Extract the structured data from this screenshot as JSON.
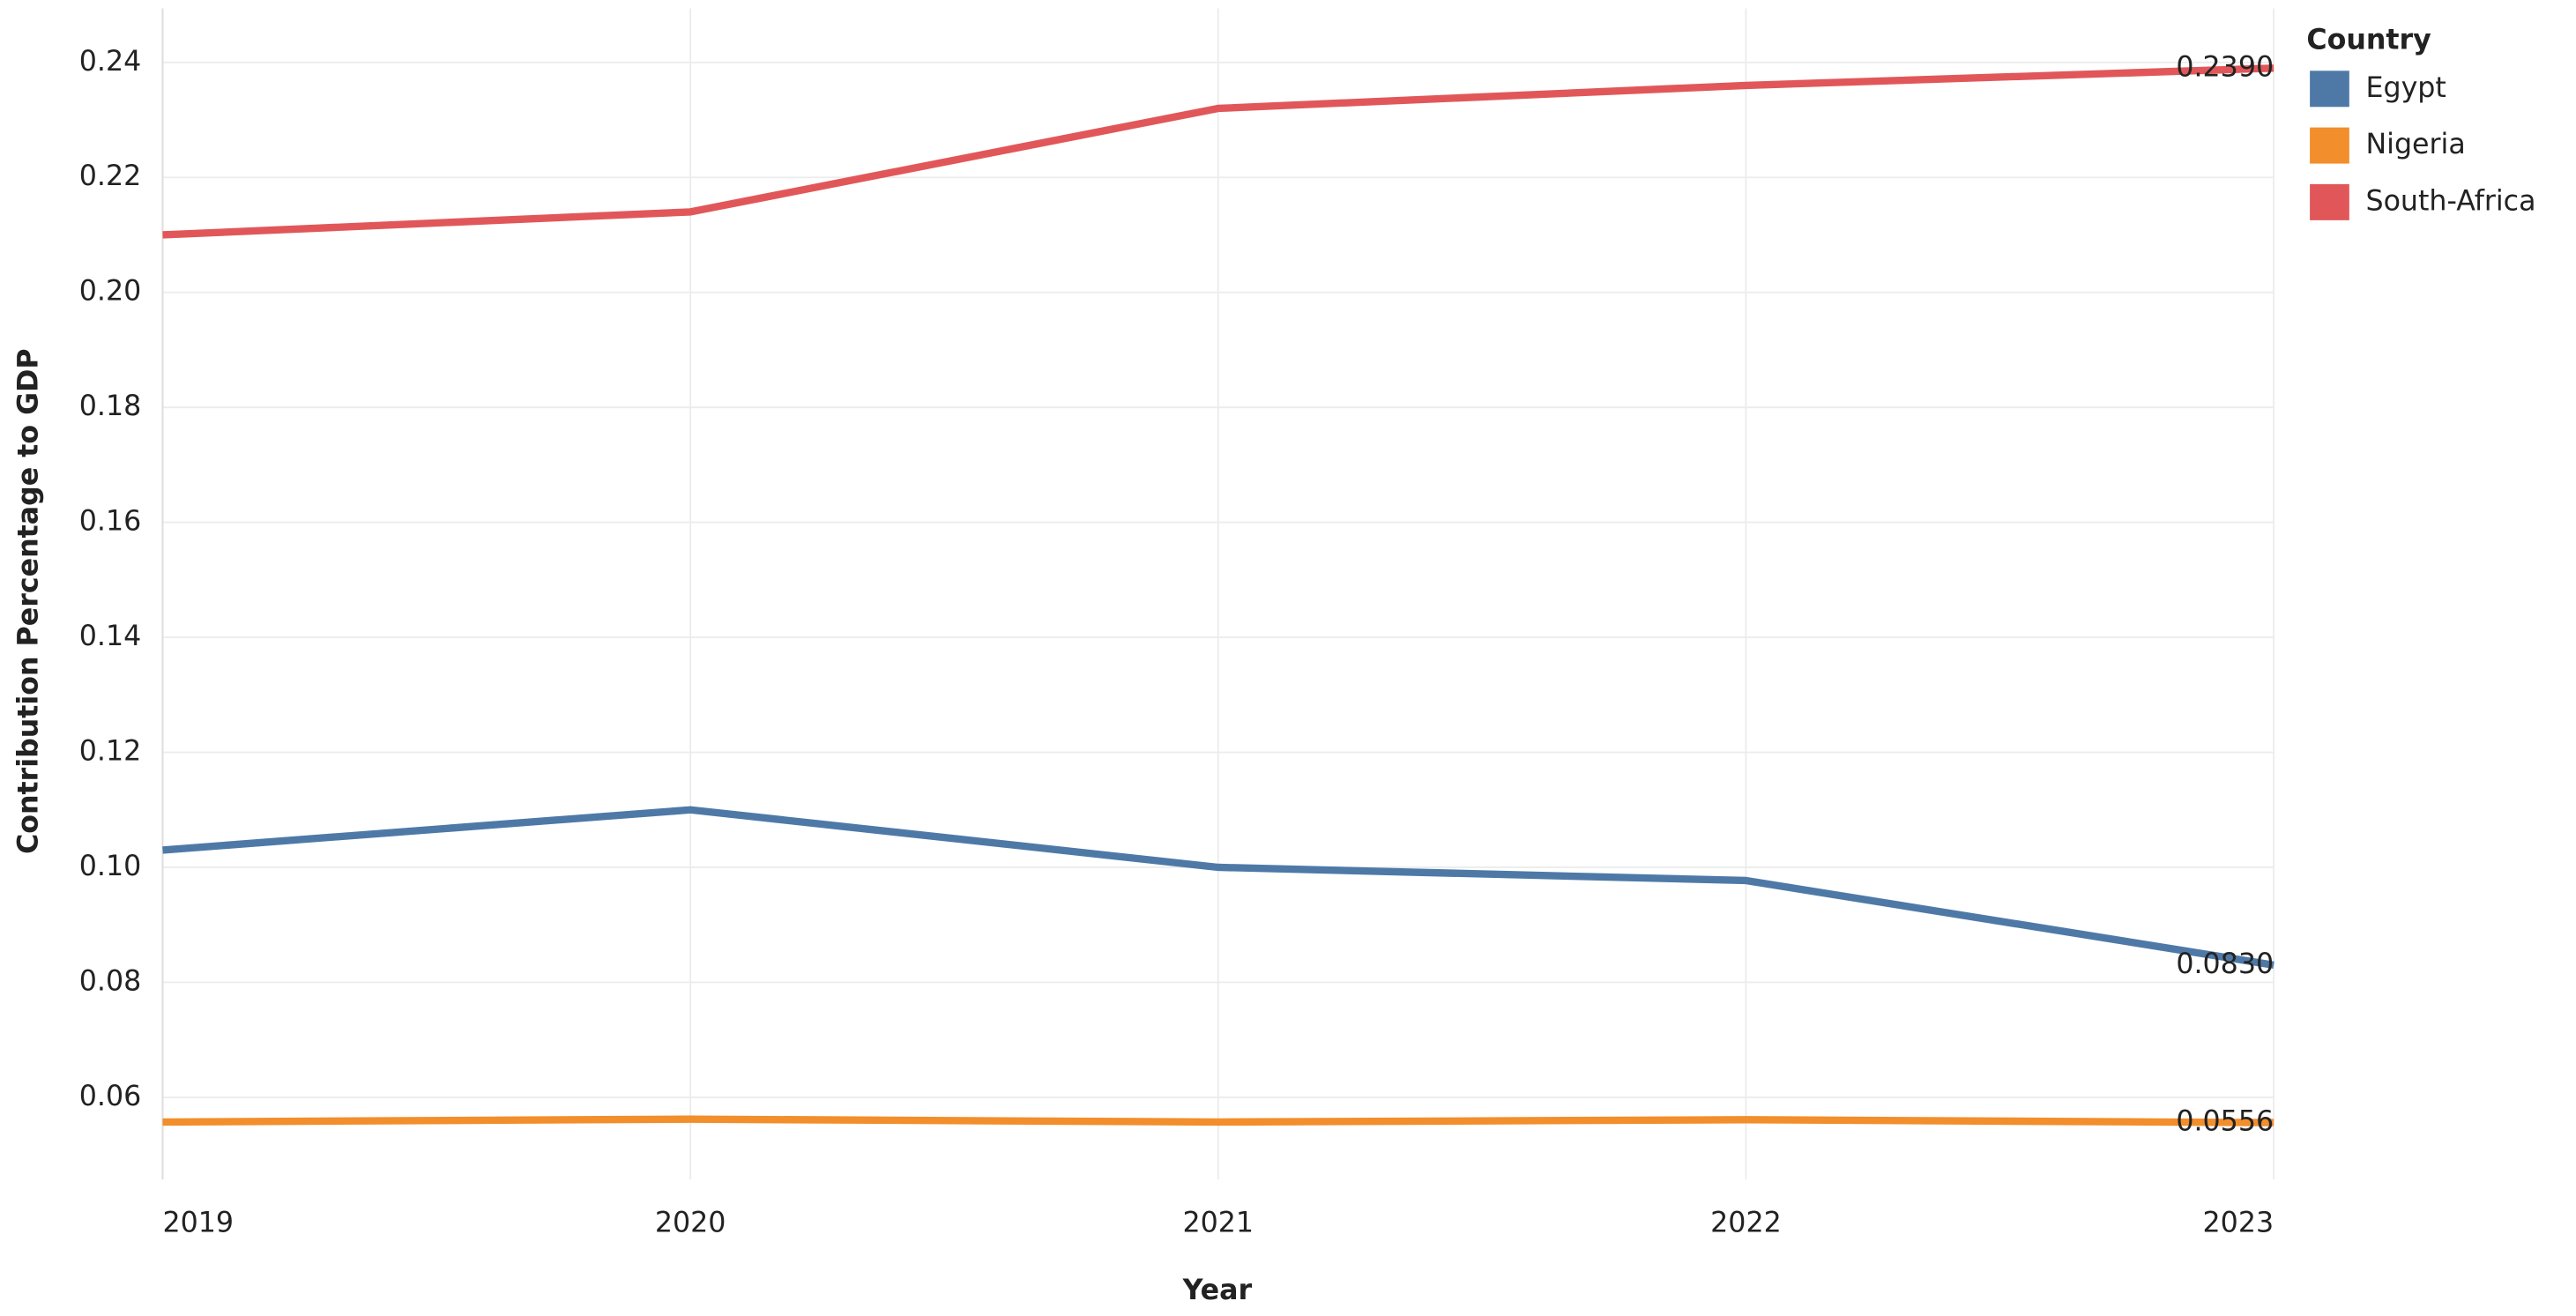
{
  "chart_data": {
    "type": "line",
    "x_label": "Year",
    "y_label": "Contribution Percentage to GDP",
    "legend_title": "Country",
    "legend_position": "right",
    "grid": true,
    "x": [
      2019,
      2020,
      2021,
      2022,
      2023
    ],
    "xlim": [
      2019,
      2023
    ],
    "xticks": [
      2019,
      2020,
      2021,
      2022,
      2023
    ],
    "ylim": [
      0.0457,
      0.2494
    ],
    "yticks": [
      {
        "value": 0.06,
        "label": "0.06"
      },
      {
        "value": 0.08,
        "label": "0.08"
      },
      {
        "value": 0.1,
        "label": "0.10"
      },
      {
        "value": 0.12,
        "label": "0.12"
      },
      {
        "value": 0.14,
        "label": "0.14"
      },
      {
        "value": 0.16,
        "label": "0.16"
      },
      {
        "value": 0.18,
        "label": "0.18"
      },
      {
        "value": 0.2,
        "label": "0.20"
      },
      {
        "value": 0.22,
        "label": "0.22"
      },
      {
        "value": 0.24,
        "label": "0.24"
      }
    ],
    "series": [
      {
        "name": "Egypt",
        "color": "#4e79a7",
        "values": [
          0.103,
          0.11,
          0.1,
          0.0977,
          0.083
        ],
        "value_labels": [
          null,
          null,
          null,
          null,
          "0.0830"
        ]
      },
      {
        "name": "Nigeria",
        "color": "#f28e2b",
        "values": [
          0.0557,
          0.0562,
          0.0557,
          0.0561,
          0.0556
        ],
        "value_labels": [
          null,
          null,
          null,
          null,
          "0.0556"
        ]
      },
      {
        "name": "South-Africa",
        "color": "#e15759",
        "values": [
          0.21,
          0.214,
          0.232,
          0.236,
          0.239
        ],
        "value_labels": [
          null,
          null,
          null,
          null,
          "0.2390"
        ]
      }
    ]
  }
}
